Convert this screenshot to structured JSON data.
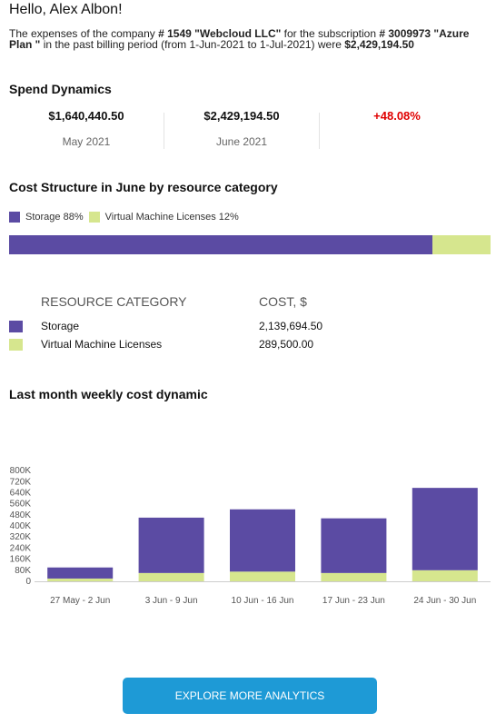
{
  "greeting": "Hello, Alex Albon!",
  "intro": {
    "p1": "The expenses of the company ",
    "company_id": "# 1549 \"Webcloud LLC\"",
    "p2": " for the subscription ",
    "subscription": "# 3009973 \"Azure Plan \"",
    "p3": " in the past billing period (from 1-Jun-2021 to 1-Jul-2021) were ",
    "total": "$2,429,194.50"
  },
  "spend": {
    "title": "Spend Dynamics",
    "prev_value": "$1,640,440.50",
    "prev_label": "May 2021",
    "curr_value": "$2,429,194.50",
    "curr_label": "June 2021",
    "delta": "+48.08%",
    "delta_color": "#e00000"
  },
  "structure": {
    "title": "Cost Structure in June by resource category",
    "legend": [
      {
        "label": "Storage 88%",
        "color": "#5b4ba3",
        "share": 0.88
      },
      {
        "label": "Virtual Machine Licenses 12%",
        "color": "#d6e68e",
        "share": 0.12
      }
    ]
  },
  "resources": {
    "col_category": "RESOURCE CATEGORY",
    "col_cost": "COST, $",
    "rows": [
      {
        "name": "Storage",
        "cost": "2,139,694.50",
        "color": "#5b4ba3"
      },
      {
        "name": "Virtual Machine Licenses",
        "cost": "289,500.00",
        "color": "#d6e68e"
      }
    ]
  },
  "weekly": {
    "title": "Last month weekly cost dynamic"
  },
  "chart_data": {
    "type": "bar",
    "stacked": true,
    "categories": [
      "27 May - 2 Jun",
      "3 Jun - 9 Jun",
      "10 Jun - 16 Jun",
      "17 Jun - 23 Jun",
      "24 Jun - 30 Jun"
    ],
    "series": [
      {
        "name": "Storage",
        "color": "#5b4ba3",
        "values": [
          80000,
          400000,
          450000,
          395000,
          595000
        ]
      },
      {
        "name": "Virtual Machine Licenses",
        "color": "#d6e68e",
        "values": [
          20000,
          60000,
          70000,
          60000,
          80000
        ]
      }
    ],
    "yticks": [
      "0",
      "80K",
      "160K",
      "240K",
      "320K",
      "400K",
      "480K",
      "560K",
      "640K",
      "720K",
      "800K"
    ],
    "ytick_values": [
      0,
      80000,
      160000,
      240000,
      320000,
      400000,
      480000,
      560000,
      640000,
      720000,
      800000
    ],
    "ylim": [
      0,
      840000
    ],
    "title": "",
    "xlabel": "",
    "ylabel": "",
    "grid": false
  },
  "cta": {
    "label": "EXPLORE MORE ANALYTICS",
    "color": "#1e9ad6"
  }
}
